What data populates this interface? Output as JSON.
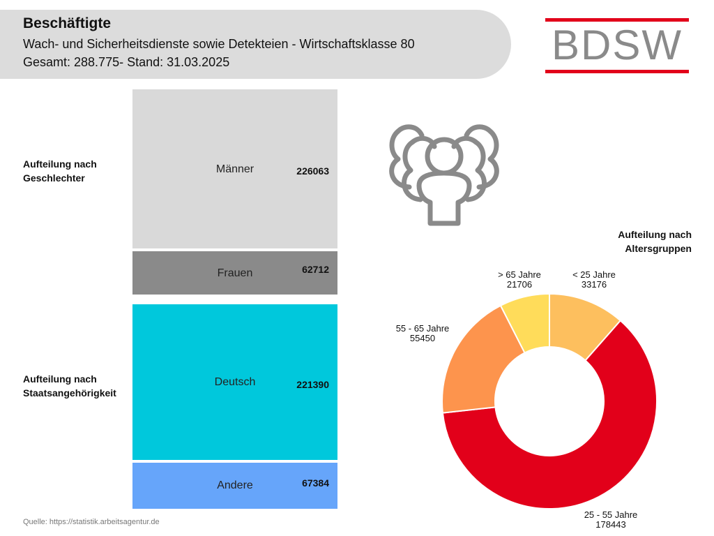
{
  "header": {
    "title": "Beschäftigte",
    "subtitle": "Wach- und Sicherheitsdienste sowie Detekteien - Wirtschaftsklasse 80",
    "total_line": "Gesamt: 288.775- Stand: 31.03.2025"
  },
  "logo": {
    "text": "BDSW",
    "colors": {
      "bar": "#e2001a",
      "text": "#8a8a8a"
    }
  },
  "icon": "people-group-icon",
  "source": "Quelle: https://statistik.arbeitsagentur.de",
  "chart_data": [
    {
      "type": "bar",
      "stacked": true,
      "orientation": "vertical",
      "title_lines": [
        "Aufteilung nach",
        "Geschlechter"
      ],
      "categories": [
        "Männer",
        "Frauen"
      ],
      "values": [
        226063,
        62712
      ],
      "colors": [
        "#d9d9d9",
        "#8a8a8a"
      ]
    },
    {
      "type": "bar",
      "stacked": true,
      "orientation": "vertical",
      "title_lines": [
        "Aufteilung nach",
        "Staatsangehörigkeit"
      ],
      "categories": [
        "Deutsch",
        "Andere"
      ],
      "values": [
        221390,
        67384
      ],
      "colors": [
        "#00c8dc",
        "#66a5fa"
      ]
    },
    {
      "type": "pie",
      "donut": true,
      "title_lines": [
        "Aufteilung nach",
        "Altersgruppen"
      ],
      "categories": [
        "< 25 Jahre",
        "25 - 55 Jahre",
        "55 - 65 Jahre",
        "> 65 Jahre"
      ],
      "values": [
        33176,
        178443,
        55450,
        21706
      ],
      "colors": [
        "#fdbf5e",
        "#e2001a",
        "#fd944d",
        "#ffdc5a"
      ],
      "start": "12 o'clock",
      "direction": "clockwise"
    }
  ]
}
